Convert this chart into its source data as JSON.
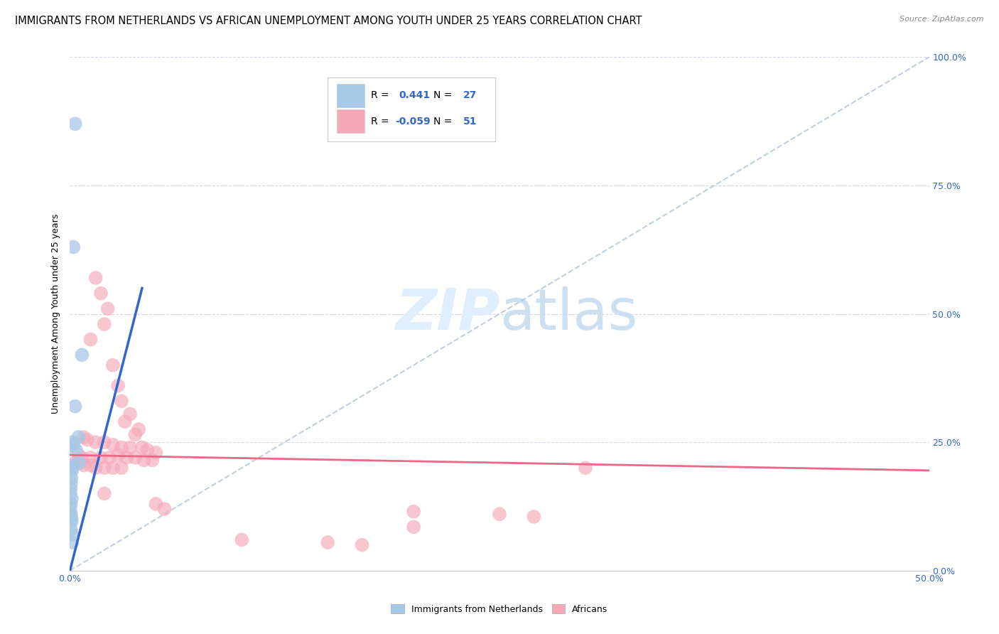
{
  "title": "IMMIGRANTS FROM NETHERLANDS VS AFRICAN UNEMPLOYMENT AMONG YOUTH UNDER 25 YEARS CORRELATION CHART",
  "source": "Source: ZipAtlas.com",
  "ylabel": "Unemployment Among Youth under 25 years",
  "legend_r1": "0.441",
  "legend_n1": "27",
  "legend_r2": "-0.059",
  "legend_n2": "51",
  "blue_color": "#a8c8e8",
  "pink_color": "#f4a8b8",
  "blue_line_color": "#3366cc",
  "pink_line_color": "#ee6688",
  "dash_line_color": "#b0c4d8",
  "grid_color": "#d8d8e8",
  "bg_color": "#ffffff",
  "text_color_blue": "#3366cc",
  "watermark_color": "#ddeeff",
  "blue_scatter": [
    [
      0.3,
      87.0
    ],
    [
      0.2,
      63.0
    ],
    [
      0.7,
      42.0
    ],
    [
      0.3,
      32.0
    ],
    [
      0.5,
      26.0
    ],
    [
      0.15,
      25.0
    ],
    [
      0.2,
      24.5
    ],
    [
      0.35,
      23.5
    ],
    [
      0.55,
      21.0
    ],
    [
      0.1,
      20.0
    ],
    [
      0.15,
      20.5
    ],
    [
      0.05,
      20.0
    ],
    [
      0.12,
      19.5
    ],
    [
      0.08,
      18.0
    ],
    [
      0.06,
      17.0
    ],
    [
      0.04,
      16.0
    ],
    [
      0.03,
      15.0
    ],
    [
      0.1,
      14.0
    ],
    [
      0.05,
      13.0
    ],
    [
      0.02,
      12.0
    ],
    [
      0.06,
      11.0
    ],
    [
      0.04,
      10.5
    ],
    [
      0.1,
      10.0
    ],
    [
      0.08,
      9.5
    ],
    [
      0.05,
      8.0
    ],
    [
      0.15,
      7.0
    ],
    [
      0.12,
      5.5
    ]
  ],
  "pink_scatter": [
    [
      1.5,
      57.0
    ],
    [
      1.8,
      54.0
    ],
    [
      2.2,
      51.0
    ],
    [
      2.0,
      48.0
    ],
    [
      1.2,
      45.0
    ],
    [
      2.5,
      40.0
    ],
    [
      2.8,
      36.0
    ],
    [
      3.0,
      33.0
    ],
    [
      3.5,
      30.5
    ],
    [
      3.2,
      29.0
    ],
    [
      4.0,
      27.5
    ],
    [
      3.8,
      26.5
    ],
    [
      0.8,
      26.0
    ],
    [
      1.0,
      25.5
    ],
    [
      1.5,
      25.0
    ],
    [
      2.0,
      25.0
    ],
    [
      2.5,
      24.5
    ],
    [
      3.0,
      24.0
    ],
    [
      3.5,
      24.0
    ],
    [
      4.2,
      24.0
    ],
    [
      4.5,
      23.5
    ],
    [
      5.0,
      23.0
    ],
    [
      0.5,
      22.5
    ],
    [
      0.7,
      22.0
    ],
    [
      1.2,
      22.0
    ],
    [
      1.8,
      22.0
    ],
    [
      2.3,
      22.0
    ],
    [
      2.8,
      22.5
    ],
    [
      3.3,
      22.0
    ],
    [
      3.8,
      22.0
    ],
    [
      4.3,
      21.5
    ],
    [
      4.8,
      21.5
    ],
    [
      0.3,
      21.0
    ],
    [
      0.5,
      21.0
    ],
    [
      0.8,
      20.5
    ],
    [
      1.2,
      20.5
    ],
    [
      1.5,
      20.0
    ],
    [
      2.0,
      20.0
    ],
    [
      2.5,
      20.0
    ],
    [
      3.0,
      20.0
    ],
    [
      30.0,
      20.0
    ],
    [
      2.0,
      15.0
    ],
    [
      5.0,
      13.0
    ],
    [
      5.5,
      12.0
    ],
    [
      20.0,
      11.5
    ],
    [
      25.0,
      11.0
    ],
    [
      27.0,
      10.5
    ],
    [
      20.0,
      8.5
    ],
    [
      10.0,
      6.0
    ],
    [
      15.0,
      5.5
    ],
    [
      17.0,
      5.0
    ]
  ],
  "blue_line": [
    [
      0.0,
      0.0
    ],
    [
      4.2,
      55.0
    ]
  ],
  "pink_line": [
    [
      0.0,
      22.5
    ],
    [
      50.0,
      19.5
    ]
  ],
  "dash_line": [
    [
      0.0,
      0.0
    ],
    [
      50.0,
      100.0
    ]
  ],
  "xlim": [
    0.0,
    50.0
  ],
  "ylim": [
    0.0,
    100.0
  ],
  "xticks": [
    0.0,
    10.0,
    20.0,
    30.0,
    40.0,
    50.0
  ],
  "xtick_labels": [
    "0.0%",
    "",
    "",
    "",
    "",
    "50.0%"
  ],
  "ytick_labels_right": [
    "0.0%",
    "25.0%",
    "50.0%",
    "75.0%",
    "100.0%"
  ],
  "scatter_size": 200,
  "title_fontsize": 10.5,
  "source_fontsize": 8,
  "axis_fontsize": 9,
  "legend_fontsize": 10
}
